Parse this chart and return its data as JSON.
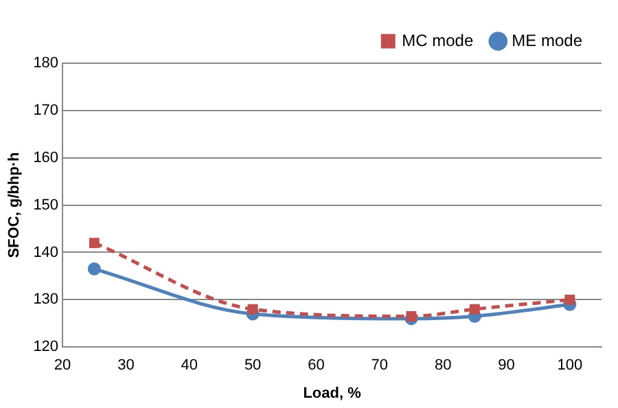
{
  "chart_data": {
    "type": "line",
    "xlabel": "Load, %",
    "ylabel": "SFOC, g/bhp·h",
    "x": [
      25,
      50,
      75,
      85,
      100
    ],
    "series": [
      {
        "name": "ME mode",
        "color": "#4f81bd",
        "values": [
          136.5,
          127,
          126,
          126.5,
          129
        ],
        "marker": "circle",
        "line_style": "solid"
      },
      {
        "name": "MC mode",
        "color": "#c0504d",
        "values": [
          142,
          128,
          126.5,
          128,
          130
        ],
        "marker": "square",
        "line_style": "dashed"
      }
    ],
    "xlim": [
      20,
      105
    ],
    "xticks": [
      20,
      30,
      40,
      50,
      60,
      70,
      80,
      90,
      100
    ],
    "ylim": [
      120,
      180
    ],
    "yticks": [
      120,
      130,
      140,
      150,
      160,
      170,
      180
    ],
    "grid": "y",
    "legend": "top right"
  }
}
